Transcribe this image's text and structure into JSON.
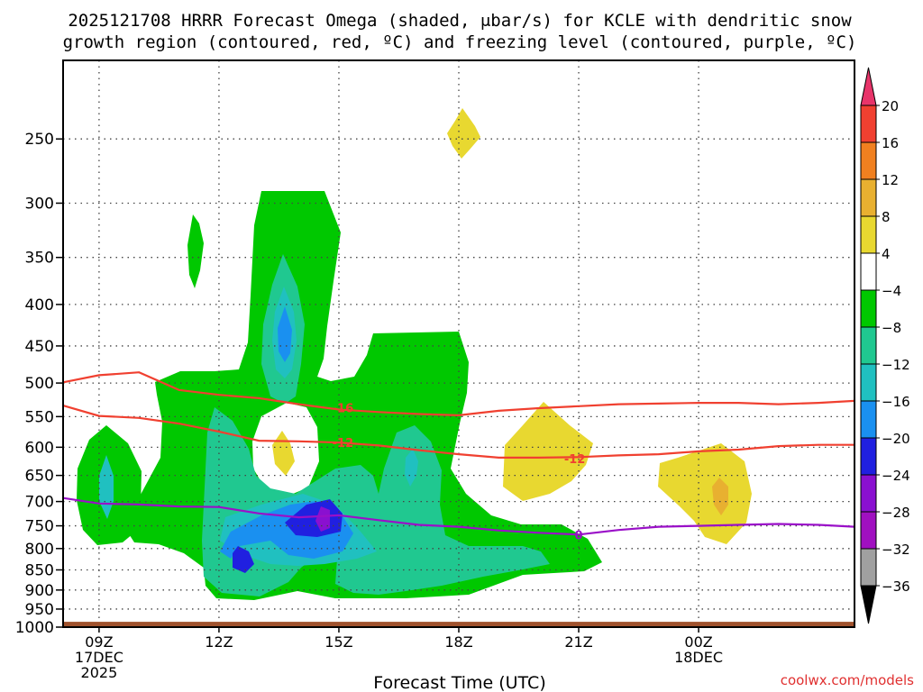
{
  "chart_data": {
    "type": "heatmap",
    "title_line1": "2025121708 HRRR Forecast Omega (shaded, μbar/s) for KCLE with dendritic snow",
    "title_line2": "growth region (contoured, red, ºC) and freezing level (contoured, purple, ºC)",
    "xlabel": "Forecast Time (UTC)",
    "credit": "coolwx.com/models",
    "x_ticks": [
      {
        "hour": 9,
        "label": "09Z",
        "sub1": "17DEC",
        "sub2": "2025"
      },
      {
        "hour": 12,
        "label": "12Z",
        "sub1": "",
        "sub2": ""
      },
      {
        "hour": 15,
        "label": "15Z",
        "sub1": "",
        "sub2": ""
      },
      {
        "hour": 18,
        "label": "18Z",
        "sub1": "",
        "sub2": ""
      },
      {
        "hour": 21,
        "label": "21Z",
        "sub1": "",
        "sub2": ""
      },
      {
        "hour": 24,
        "label": "00Z",
        "sub1": "18DEC",
        "sub2": ""
      }
    ],
    "x_range_hours": [
      8.1,
      27.9
    ],
    "y_ticks": [
      250,
      300,
      350,
      400,
      450,
      500,
      550,
      600,
      650,
      700,
      750,
      800,
      850,
      900,
      950,
      1000
    ],
    "y_range_hPa": [
      200,
      1000
    ],
    "y_scale": "pressure",
    "grid": true,
    "colorbar": {
      "levels": [
        "20",
        "16",
        "12",
        "8",
        "4",
        "−4",
        "−8",
        "−12",
        "−16",
        "−20",
        "−24",
        "−28",
        "−32",
        "−36"
      ],
      "colors": [
        "#e8346a",
        "#f04030",
        "#f08020",
        "#e8b030",
        "#e8d830",
        "#ffffff",
        "#00c800",
        "#20c890",
        "#20c0c0",
        "#1a90f0",
        "#2020e0",
        "#8a10d0",
        "#a010c0",
        "#a0a0a0",
        "#000000"
      ]
    },
    "contours": [
      {
        "name": "-16",
        "color": "#f04030",
        "label": "-16",
        "points": [
          [
            8.1,
            499
          ],
          [
            9,
            489
          ],
          [
            10,
            485
          ],
          [
            11,
            510
          ],
          [
            12,
            517
          ],
          [
            13,
            522
          ],
          [
            14,
            531
          ],
          [
            15,
            539
          ],
          [
            16,
            543
          ],
          [
            17,
            546
          ],
          [
            18,
            548
          ],
          [
            19,
            541
          ],
          [
            20,
            537
          ],
          [
            21,
            534
          ],
          [
            22,
            531
          ],
          [
            23,
            530
          ],
          [
            24,
            529
          ],
          [
            25,
            529
          ],
          [
            26,
            531
          ],
          [
            27,
            529
          ],
          [
            27.9,
            526
          ]
        ]
      },
      {
        "name": "-12",
        "color": "#f04030",
        "label": "-12",
        "points": [
          [
            8.1,
            533
          ],
          [
            9,
            549
          ],
          [
            10,
            552
          ],
          [
            11,
            561
          ],
          [
            12,
            574
          ],
          [
            13,
            589
          ],
          [
            14,
            590
          ],
          [
            15,
            592
          ],
          [
            16,
            597
          ],
          [
            17,
            605
          ],
          [
            18,
            612
          ],
          [
            19,
            618
          ],
          [
            20,
            618
          ],
          [
            21,
            617
          ],
          [
            22,
            614
          ],
          [
            23,
            612
          ],
          [
            24,
            607
          ],
          [
            25,
            604
          ],
          [
            26,
            598
          ],
          [
            27,
            596
          ],
          [
            27.9,
            596
          ]
        ]
      },
      {
        "name": "0",
        "color": "#9a10c8",
        "label": "0",
        "points": [
          [
            8.1,
            693
          ],
          [
            9,
            704
          ],
          [
            10,
            706
          ],
          [
            11,
            710
          ],
          [
            12,
            711
          ],
          [
            13,
            724
          ],
          [
            14,
            732
          ],
          [
            15,
            728
          ],
          [
            16,
            738
          ],
          [
            17,
            748
          ],
          [
            18,
            752
          ],
          [
            19,
            760
          ],
          [
            20,
            765
          ],
          [
            21,
            769
          ],
          [
            22,
            759
          ],
          [
            23,
            752
          ],
          [
            24,
            750
          ],
          [
            25,
            748
          ],
          [
            26,
            746
          ],
          [
            27,
            748
          ],
          [
            27.9,
            752
          ]
        ]
      }
    ],
    "contour_labels": [
      {
        "text": "-16",
        "hour": 15.1,
        "p": 536,
        "color": "#f04030"
      },
      {
        "text": "-12",
        "hour": 15.1,
        "p": 592,
        "color": "#f04030"
      },
      {
        "text": "-12",
        "hour": 20.9,
        "p": 620,
        "color": "#f04030"
      },
      {
        "text": "0",
        "hour": 21.0,
        "p": 769,
        "color": "#9a10c8"
      }
    ],
    "terrain": {
      "color": "#a0522d",
      "top_hPa": 985
    }
  }
}
